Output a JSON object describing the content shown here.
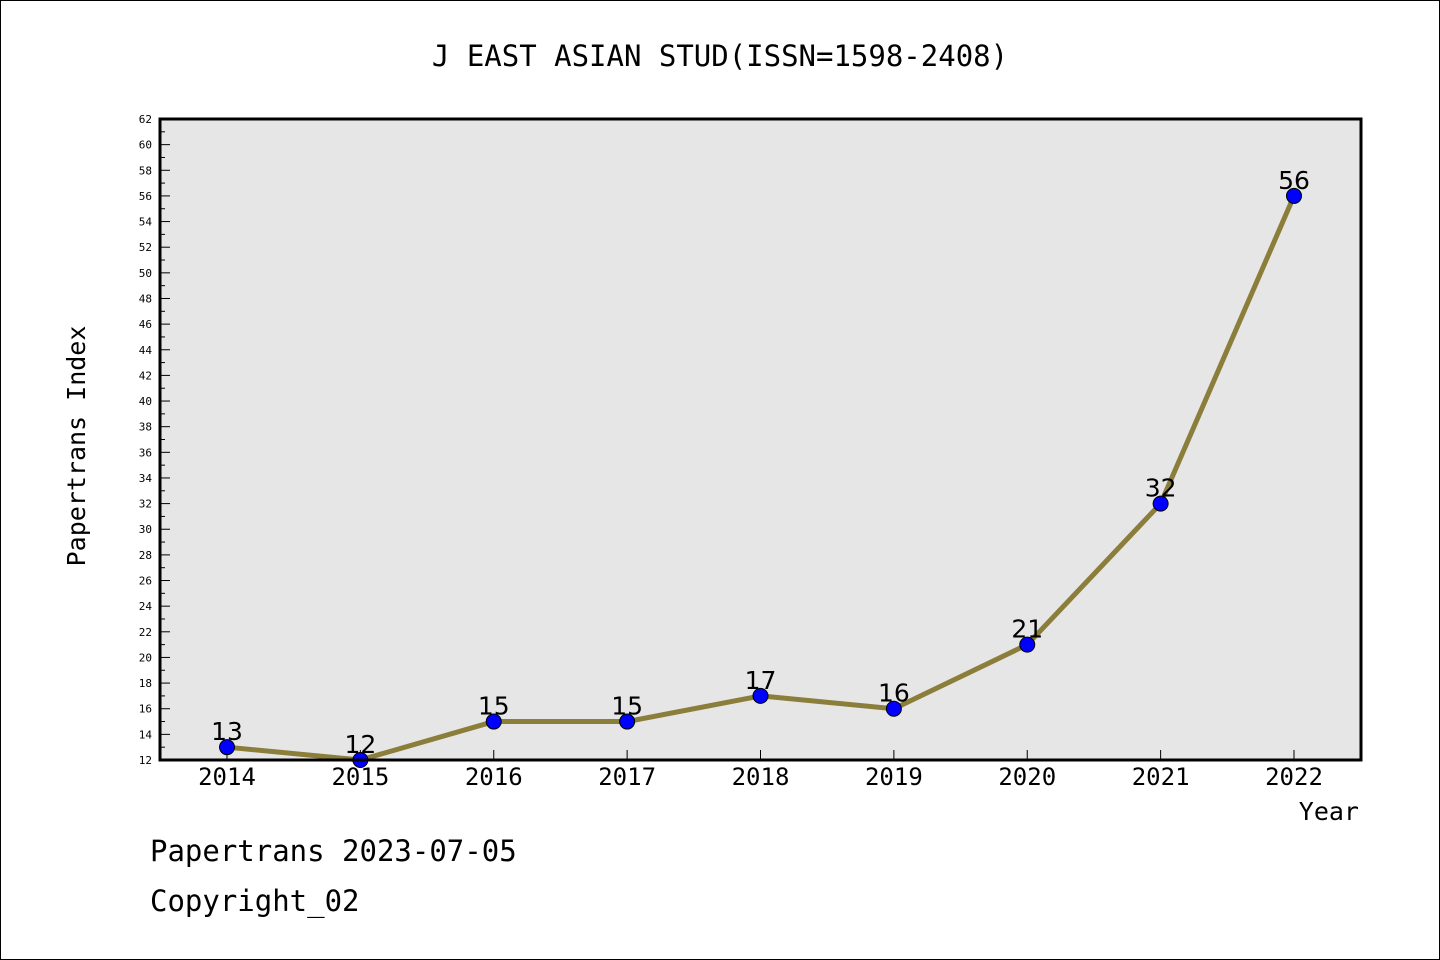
{
  "chart_data": {
    "type": "line",
    "title": "J EAST ASIAN STUD(ISSN=1598-2408)",
    "xlabel": "Year",
    "ylabel": "Papertrans Index",
    "categories": [
      "2014",
      "2015",
      "2016",
      "2017",
      "2018",
      "2019",
      "2020",
      "2021",
      "2022"
    ],
    "series": [
      {
        "values": [
          13,
          12,
          15,
          15,
          17,
          16,
          21,
          32,
          56
        ]
      }
    ],
    "ylim": [
      12,
      62
    ],
    "yticks": [
      12,
      14,
      16,
      18,
      20,
      22,
      24,
      26,
      28,
      30,
      32,
      34,
      36,
      38,
      40,
      42,
      44,
      46,
      48,
      50,
      52,
      54,
      56,
      58,
      60,
      62
    ],
    "grid": false,
    "data_labels": true,
    "colors": {
      "line": "#8b7d3a",
      "marker": "#0000ff",
      "plot_background": "#e6e6e6"
    }
  },
  "footer": {
    "line1": "Papertrans 2023-07-05",
    "line2": "Copyright_02"
  }
}
